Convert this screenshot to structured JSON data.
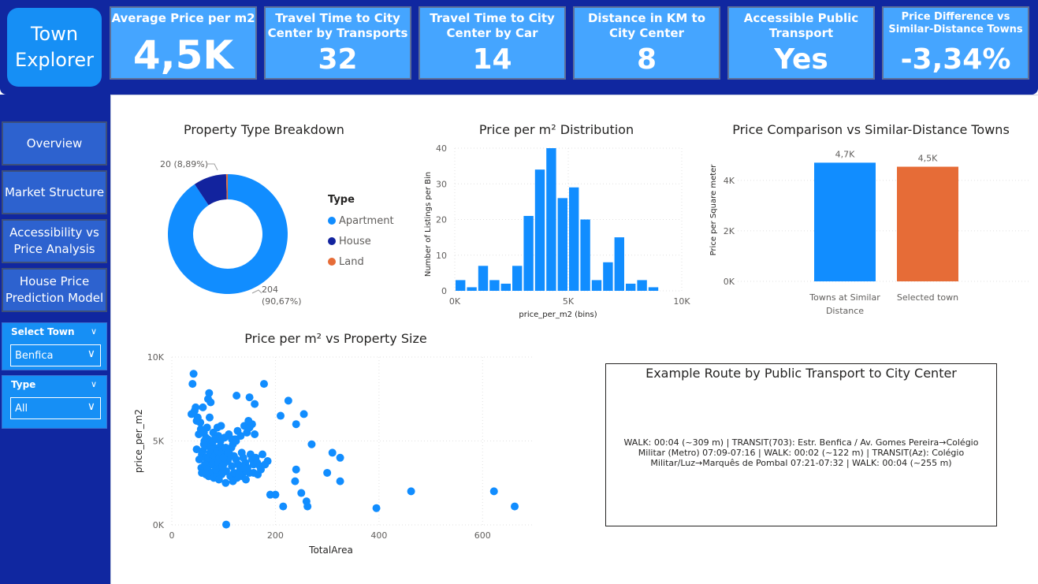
{
  "app": {
    "title_line1": "Town",
    "title_line2": "Explorer"
  },
  "kpis": [
    {
      "title": "Average Price per m2",
      "value": "4,5K"
    },
    {
      "title": "Travel Time to City Center by Transports",
      "value": "32"
    },
    {
      "title": "Travel Time to City Center by Car",
      "value": "14"
    },
    {
      "title": "Distance in KM to City Center",
      "value": "8"
    },
    {
      "title": "Accessible Public Transport",
      "value": "Yes"
    },
    {
      "title": "Price Difference vs Similar-Distance Towns",
      "value": "-3,34%"
    }
  ],
  "nav": [
    {
      "label": "Overview"
    },
    {
      "label": "Market Structure"
    },
    {
      "label": "Accessibility vs Price Analysis"
    },
    {
      "label": "House Price Prediction Model"
    }
  ],
  "slicers": {
    "town": {
      "label": "Select Town",
      "value": "Benfica"
    },
    "type": {
      "label": "Type",
      "value": "All"
    }
  },
  "colors": {
    "navy": "#1027a0",
    "blue": "#168ff5",
    "dark_navy": "#12239e",
    "orange": "#e66c37"
  },
  "chart_data": [
    {
      "type": "pie",
      "title": "Property Type Breakdown",
      "legend_title": "Type",
      "legend_position": "right",
      "slices": [
        {
          "name": "Apartment",
          "value": 204,
          "label_count": "204",
          "label_pct": "(90,67%)"
        },
        {
          "name": "House",
          "value": 20,
          "label": "20 (8,89%)"
        },
        {
          "name": "Land",
          "value": 1
        }
      ]
    },
    {
      "type": "bar",
      "title": "Price per m² Distribution",
      "xlabel": "price_per_m2 (bins)",
      "ylabel": "Number of Listings per Bin",
      "x_ticks": [
        "0K",
        "5K",
        "10K"
      ],
      "y_ticks": [
        "0",
        "10",
        "20",
        "30",
        "40"
      ],
      "xlim": [
        0,
        10000
      ],
      "ylim": [
        0,
        40
      ],
      "bin_width": 500,
      "bins": [
        {
          "x": 0,
          "count": 3
        },
        {
          "x": 500,
          "count": 1
        },
        {
          "x": 1000,
          "count": 7
        },
        {
          "x": 1500,
          "count": 3
        },
        {
          "x": 2000,
          "count": 2
        },
        {
          "x": 2500,
          "count": 7
        },
        {
          "x": 3000,
          "count": 21
        },
        {
          "x": 3500,
          "count": 34
        },
        {
          "x": 4000,
          "count": 40
        },
        {
          "x": 4500,
          "count": 26
        },
        {
          "x": 5000,
          "count": 29
        },
        {
          "x": 5500,
          "count": 20
        },
        {
          "x": 6000,
          "count": 3
        },
        {
          "x": 6500,
          "count": 8
        },
        {
          "x": 7000,
          "count": 15
        },
        {
          "x": 7500,
          "count": 2
        },
        {
          "x": 8000,
          "count": 3
        },
        {
          "x": 8500,
          "count": 1
        }
      ]
    },
    {
      "type": "bar",
      "title": "Price Comparison vs Similar-Distance Towns",
      "ylabel": "Price per Square meter",
      "y_ticks": [
        "0K",
        "2K",
        "4K"
      ],
      "ylim": [
        0,
        4900
      ],
      "categories": [
        "Towns at Similar Distance",
        "Selected town"
      ],
      "category_labels": [
        [
          "Towns at Similar",
          "Distance"
        ],
        [
          "Selected town"
        ]
      ],
      "values": [
        4700,
        4540
      ],
      "value_labels": [
        "4,7K",
        "4,5K"
      ],
      "colors": [
        "#118dff",
        "#e66c37"
      ]
    },
    {
      "type": "scatter",
      "title": "Price per m² vs Property Size",
      "xlabel": "TotalArea",
      "ylabel": "price_per_m2",
      "x_ticks": [
        "0",
        "200",
        "400",
        "600"
      ],
      "y_ticks": [
        "0K",
        "5K",
        "10K"
      ],
      "xlim": [
        0,
        700
      ],
      "ylim": [
        0,
        10000
      ],
      "points": [
        [
          42,
          9000
        ],
        [
          40,
          8400
        ],
        [
          60,
          7000
        ],
        [
          70,
          7500
        ],
        [
          72,
          7850
        ],
        [
          75,
          7300
        ],
        [
          73,
          6400
        ],
        [
          38,
          6600
        ],
        [
          48,
          6200
        ],
        [
          55,
          6100
        ],
        [
          62,
          5500
        ],
        [
          66,
          5200
        ],
        [
          68,
          5800
        ],
        [
          70,
          5100
        ],
        [
          80,
          5500
        ],
        [
          84,
          5200
        ],
        [
          88,
          5800
        ],
        [
          90,
          5300
        ],
        [
          95,
          5900
        ],
        [
          78,
          4900
        ],
        [
          82,
          4600
        ],
        [
          60,
          4400
        ],
        [
          58,
          4200
        ],
        [
          65,
          4000
        ],
        [
          72,
          4100
        ],
        [
          74,
          3800
        ],
        [
          78,
          3600
        ],
        [
          85,
          3900
        ],
        [
          88,
          3400
        ],
        [
          92,
          3200
        ],
        [
          96,
          3000
        ],
        [
          100,
          3600
        ],
        [
          105,
          3200
        ],
        [
          108,
          3800
        ],
        [
          112,
          4200
        ],
        [
          115,
          4600
        ],
        [
          120,
          4100
        ],
        [
          124,
          3900
        ],
        [
          128,
          3600
        ],
        [
          132,
          3300
        ],
        [
          135,
          4300
        ],
        [
          138,
          4000
        ],
        [
          142,
          3700
        ],
        [
          146,
          3400
        ],
        [
          150,
          3100
        ],
        [
          152,
          4200
        ],
        [
          155,
          3900
        ],
        [
          158,
          3600
        ],
        [
          162,
          4000
        ],
        [
          165,
          3700
        ],
        [
          170,
          3500
        ],
        [
          118,
          4800
        ],
        [
          122,
          5100
        ],
        [
          127,
          5600
        ],
        [
          133,
          5300
        ],
        [
          140,
          5900
        ],
        [
          145,
          5500
        ],
        [
          150,
          5800
        ],
        [
          155,
          6000
        ],
        [
          160,
          5400
        ],
        [
          125,
          7700
        ],
        [
          150,
          7600
        ],
        [
          160,
          7200
        ],
        [
          178,
          8400
        ],
        [
          210,
          6500
        ],
        [
          225,
          7400
        ],
        [
          240,
          6000
        ],
        [
          255,
          6600
        ],
        [
          270,
          4800
        ],
        [
          310,
          4300
        ],
        [
          325,
          4000
        ],
        [
          240,
          3300
        ],
        [
          238,
          2600
        ],
        [
          190,
          1800
        ],
        [
          200,
          1800
        ],
        [
          215,
          1100
        ],
        [
          250,
          1900
        ],
        [
          260,
          1400
        ],
        [
          262,
          1100
        ],
        [
          300,
          3100
        ],
        [
          325,
          2600
        ],
        [
          395,
          1000
        ],
        [
          462,
          2000
        ],
        [
          622,
          2000
        ],
        [
          662,
          1100
        ],
        [
          105,
          20
        ],
        [
          52,
          5400
        ],
        [
          56,
          5700
        ],
        [
          63,
          5000
        ],
        [
          67,
          4700
        ],
        [
          76,
          4500
        ],
        [
          86,
          4300
        ],
        [
          94,
          4700
        ],
        [
          102,
          4400
        ],
        [
          110,
          4000
        ],
        [
          116,
          3500
        ],
        [
          126,
          2800
        ],
        [
          136,
          2900
        ],
        [
          144,
          3200
        ],
        [
          175,
          4200
        ],
        [
          185,
          3800
        ],
        [
          48,
          4500
        ],
        [
          53,
          3900
        ],
        [
          57,
          3400
        ],
        [
          61,
          3200
        ],
        [
          64,
          3600
        ],
        [
          69,
          3300
        ],
        [
          71,
          2900
        ],
        [
          76,
          3100
        ],
        [
          81,
          2800
        ],
        [
          87,
          3000
        ],
        [
          91,
          2700
        ],
        [
          98,
          3100
        ],
        [
          104,
          2500
        ],
        [
          113,
          2900
        ],
        [
          118,
          2600
        ],
        [
          148,
          6200
        ],
        [
          46,
          7000
        ],
        [
          44,
          6800
        ],
        [
          50,
          6400
        ],
        [
          70,
          4000
        ],
        [
          74,
          4300
        ],
        [
          79,
          3900
        ],
        [
          83,
          4100
        ],
        [
          88,
          4400
        ],
        [
          92,
          4000
        ],
        [
          96,
          4300
        ],
        [
          100,
          4000
        ],
        [
          104,
          4600
        ],
        [
          108,
          4300
        ],
        [
          66,
          3000
        ],
        [
          58,
          3100
        ],
        [
          84,
          3300
        ],
        [
          90,
          3700
        ],
        [
          98,
          3500
        ],
        [
          120,
          3100
        ],
        [
          130,
          3000
        ],
        [
          138,
          3400
        ],
        [
          143,
          2700
        ],
        [
          158,
          3100
        ],
        [
          166,
          3000
        ],
        [
          172,
          3300
        ],
        [
          180,
          3600
        ],
        [
          62,
          4800
        ],
        [
          86,
          5100
        ],
        [
          94,
          5000
        ],
        [
          102,
          5200
        ],
        [
          110,
          5400
        ],
        [
          116,
          5100
        ],
        [
          124,
          5000
        ]
      ]
    }
  ],
  "route": {
    "title": "Example Route by Public Transport to City Center",
    "text": "WALK: 00:04 (~309 m) | TRANSIT(703): Estr. Benfica / Av. Gomes Pereira→Colégio Militar (Metro) 07:09-07:16 | WALK: 00:02 (~122 m) | TRANSIT(Az): Colégio Militar/Luz→Marquês de Pombal 07:21-07:32 | WALK: 00:04 (~255 m)"
  }
}
